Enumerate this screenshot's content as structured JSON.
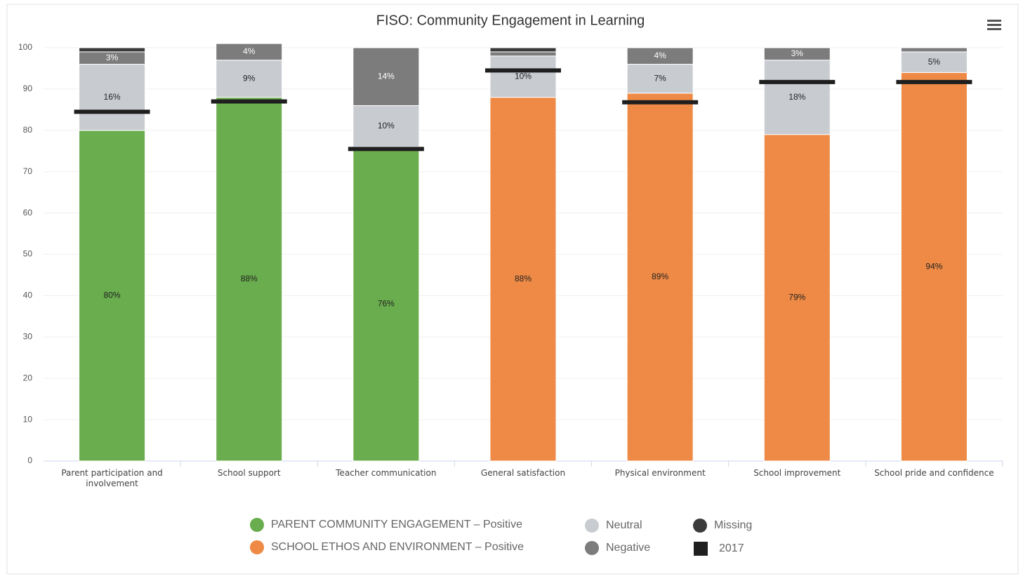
{
  "chart_data": {
    "type": "stacked_bar",
    "title": "FISO: Community Engagement in Learning",
    "categories": [
      "Parent participation and involvement",
      "School support",
      "Teacher communication",
      "General satisfaction",
      "Physical environment",
      "School improvement",
      "School pride and confidence"
    ],
    "series": [
      {
        "name": "PARENT COMMUNITY ENGAGEMENT – Positive",
        "color": "#6aad4e",
        "values": [
          80,
          88,
          76,
          null,
          null,
          null,
          null
        ],
        "value_labels": [
          "80%",
          "88%",
          "76%",
          null,
          null,
          null,
          null
        ]
      },
      {
        "name": "SCHOOL ETHOS AND ENVIRONMENT – Positive",
        "color": "#ee8a45",
        "values": [
          null,
          null,
          null,
          88,
          89,
          79,
          94
        ],
        "value_labels": [
          null,
          null,
          null,
          "88%",
          "89%",
          "79%",
          "94%"
        ]
      },
      {
        "name": "Neutral",
        "color": "#c8ccd1",
        "values": [
          16,
          9,
          10,
          10,
          7,
          18,
          5
        ],
        "value_labels": [
          "16%",
          "9%",
          "10%",
          "10%",
          "7%",
          "18%",
          "5%"
        ]
      },
      {
        "name": "Negative",
        "color": "#7c7c7c",
        "values": [
          3,
          4,
          14,
          1,
          4,
          3,
          1
        ],
        "value_labels": [
          "3%",
          "4%",
          "14%",
          null,
          "4%",
          "3%",
          null
        ]
      },
      {
        "name": "Missing",
        "color": "#3b3b3b",
        "values": [
          1,
          0,
          0,
          1,
          0,
          0,
          0
        ]
      }
    ],
    "benchmark": {
      "name": "2017",
      "color": "#1f1f1f",
      "values": [
        84.5,
        87,
        75.5,
        94.5,
        86.8,
        91.7,
        91.7
      ]
    },
    "ylim": [
      0,
      100
    ],
    "yticks": [
      0,
      10,
      20,
      30,
      40,
      50,
      60,
      70,
      80,
      90,
      100
    ],
    "grid": true
  }
}
